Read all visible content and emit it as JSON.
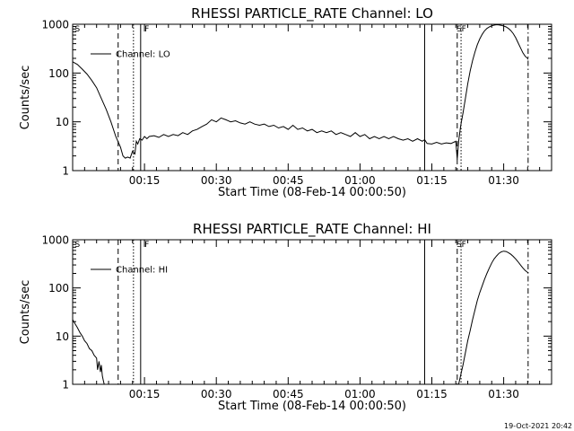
{
  "timestamp": "19-Oct-2021 20:42",
  "chart_data": [
    {
      "type": "line",
      "title": "RHESSI PARTICLE_RATE Channel: LO",
      "xlabel": "Start Time (08-Feb-14 00:00:50)",
      "ylabel": "Counts/sec",
      "y_scale": "log",
      "xlim": [
        0,
        100
      ],
      "ylim": [
        1,
        1000
      ],
      "x_tick_values": [
        15,
        30,
        45,
        60,
        75,
        90
      ],
      "x_tick_labels": [
        "00:15",
        "00:30",
        "00:45",
        "01:00",
        "01:15",
        "01:30"
      ],
      "y_tick_values": [
        1,
        10,
        100,
        1000
      ],
      "y_tick_labels": [
        "1",
        "10",
        "100",
        "1000"
      ],
      "legend": [
        "Channel: LO"
      ],
      "legend_position": "top-left",
      "markers": [
        {
          "x": 1,
          "label": "S"
        },
        {
          "x": 15.5,
          "label": "F"
        },
        {
          "x": 80.7,
          "label": "S"
        },
        {
          "x": 81.7,
          "label": "F"
        }
      ],
      "vlines": [
        {
          "x": 9.5,
          "style": "dashed"
        },
        {
          "x": 12.7,
          "style": "dotted"
        },
        {
          "x": 14.2,
          "style": "solid"
        },
        {
          "x": 73.5,
          "style": "solid"
        },
        {
          "x": 80.3,
          "style": "dashed"
        },
        {
          "x": 81.1,
          "style": "dotted"
        },
        {
          "x": 95.1,
          "style": "dashdot"
        }
      ],
      "series": [
        {
          "name": "Channel: LO",
          "x": [
            0,
            1,
            2,
            3,
            4,
            5,
            6,
            7,
            8,
            9,
            10,
            10.5,
            11,
            11.5,
            12,
            12.5,
            13,
            13.3,
            13.6,
            14,
            14.5,
            15,
            15.5,
            16,
            17,
            18,
            19,
            20,
            21,
            22,
            23,
            24,
            25,
            26,
            27,
            28,
            29,
            30,
            31,
            32,
            33,
            34,
            35,
            36,
            37,
            38,
            39,
            40,
            41,
            42,
            43,
            44,
            45,
            46,
            47,
            48,
            49,
            50,
            51,
            52,
            53,
            54,
            55,
            56,
            57,
            58,
            59,
            60,
            61,
            62,
            63,
            64,
            65,
            66,
            67,
            68,
            69,
            70,
            71,
            72,
            73,
            73.5,
            74,
            75,
            76,
            77,
            78,
            79,
            80,
            80.3,
            80.6,
            81,
            81.5,
            82,
            82.5,
            83,
            83.5,
            84,
            84.5,
            85,
            85.5,
            86,
            86.5,
            87,
            87.5,
            88,
            88.5,
            89,
            89.5,
            90,
            90.5,
            91,
            91.5,
            92,
            92.5,
            93,
            93.5,
            94,
            94.5,
            95,
            95.1
          ],
          "values": [
            170,
            150,
            120,
            95,
            70,
            50,
            30,
            18,
            10,
            5,
            3,
            2,
            1.8,
            1.9,
            1.8,
            2.5,
            2.2,
            4,
            3.5,
            4.5,
            4.2,
            5,
            4.5,
            5,
            5.2,
            4.8,
            5.5,
            5,
            5.5,
            5.2,
            6,
            5.5,
            6.5,
            7,
            8,
            9,
            11,
            10,
            12,
            11,
            10,
            10.5,
            9.5,
            9,
            10,
            9,
            8.5,
            9,
            8,
            8.5,
            7.5,
            8,
            7,
            8.5,
            7,
            7.5,
            6.5,
            7,
            6,
            6.5,
            6,
            6.5,
            5.5,
            6,
            5.5,
            5,
            6,
            5,
            5.5,
            4.5,
            5,
            4.5,
            5,
            4.5,
            5,
            4.5,
            4.2,
            4.5,
            4,
            4.5,
            4,
            4.3,
            3.6,
            3.5,
            3.8,
            3.5,
            3.7,
            3.6,
            4,
            1.7,
            4,
            8,
            15,
            30,
            60,
            110,
            180,
            270,
            380,
            500,
            620,
            730,
            820,
            880,
            930,
            960,
            980,
            970,
            950,
            920,
            880,
            820,
            740,
            640,
            530,
            420,
            330,
            260,
            220,
            200,
            190
          ]
        }
      ]
    },
    {
      "type": "line",
      "title": "RHESSI PARTICLE_RATE Channel: HI",
      "xlabel": "Start Time (08-Feb-14 00:00:50)",
      "ylabel": "Counts/sec",
      "y_scale": "log",
      "xlim": [
        0,
        100
      ],
      "ylim": [
        1,
        1000
      ],
      "x_tick_values": [
        15,
        30,
        45,
        60,
        75,
        90
      ],
      "x_tick_labels": [
        "00:15",
        "00:30",
        "00:45",
        "01:00",
        "01:15",
        "01:30"
      ],
      "y_tick_values": [
        1,
        10,
        100,
        1000
      ],
      "y_tick_labels": [
        "1",
        "10",
        "100",
        "1000"
      ],
      "legend": [
        "Channel: HI"
      ],
      "legend_position": "top-left",
      "markers": [
        {
          "x": 1,
          "label": "S"
        },
        {
          "x": 15.5,
          "label": "F"
        },
        {
          "x": 80.7,
          "label": "S"
        },
        {
          "x": 81.7,
          "label": "F"
        }
      ],
      "vlines": [
        {
          "x": 9.5,
          "style": "dashed"
        },
        {
          "x": 12.7,
          "style": "dotted"
        },
        {
          "x": 14.2,
          "style": "solid"
        },
        {
          "x": 73.5,
          "style": "solid"
        },
        {
          "x": 80.3,
          "style": "dashed"
        },
        {
          "x": 81.1,
          "style": "dotted"
        },
        {
          "x": 95.1,
          "style": "dashdot"
        }
      ],
      "series": [
        {
          "name": "Channel: HI",
          "x": [
            0,
            0.5,
            1,
            1.5,
            2,
            2.5,
            3,
            3.5,
            4,
            4.5,
            5,
            5.2,
            5.5,
            5.8,
            6,
            6.2,
            6.4,
            6.6
          ],
          "values": [
            22,
            18,
            15,
            12,
            10,
            8,
            7,
            5.5,
            5,
            4,
            3.5,
            2,
            3,
            1.8,
            2.5,
            1.5,
            1.2,
            1
          ]
        },
        {
          "name": "Channel: HI",
          "x": [
            80.6,
            81,
            81.5,
            82,
            82.5,
            83,
            83.5,
            84,
            84.5,
            85,
            85.5,
            86,
            86.5,
            87,
            87.5,
            88,
            88.5,
            89,
            89.5,
            90,
            90.5,
            91,
            91.5,
            92,
            92.5,
            93,
            93.5,
            94,
            94.5,
            95,
            95.1
          ],
          "values": [
            1,
            1.5,
            2.5,
            4.5,
            8,
            13,
            22,
            35,
            55,
            80,
            110,
            150,
            200,
            260,
            330,
            400,
            460,
            520,
            560,
            580,
            570,
            540,
            500,
            450,
            400,
            350,
            300,
            260,
            230,
            210,
            200
          ]
        }
      ]
    }
  ]
}
